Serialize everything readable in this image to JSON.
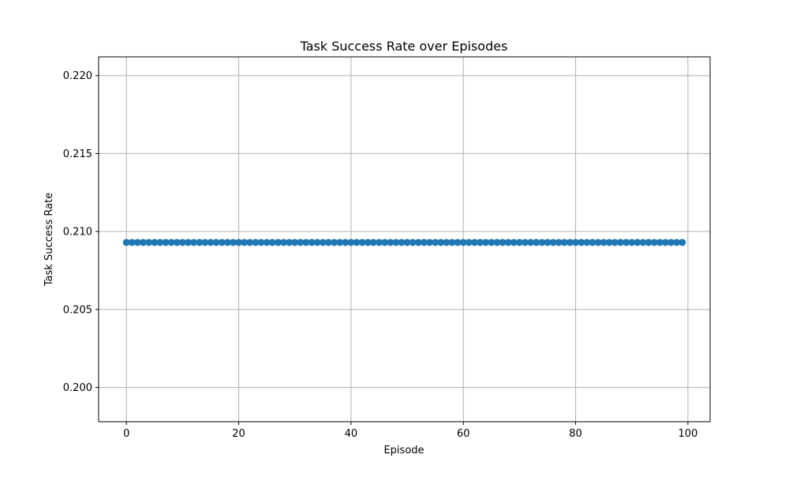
{
  "chart_data": {
    "type": "line",
    "title": "Task Success Rate over Episodes",
    "xlabel": "Episode",
    "ylabel": "Task Success Rate",
    "xlim": [
      -4.95,
      103.95
    ],
    "ylim": [
      0.1978,
      0.2212
    ],
    "xticks": [
      0,
      20,
      40,
      60,
      80,
      100
    ],
    "yticks": [
      0.2,
      0.205,
      0.21,
      0.215,
      0.22
    ],
    "ytick_labels": [
      "0.200",
      "0.205",
      "0.210",
      "0.215",
      "0.220"
    ],
    "grid": true,
    "line_color": "#1f77b4",
    "marker": "circle",
    "series": [
      {
        "x_start": 0,
        "x_end": 99,
        "x_step": 1,
        "value": 0.2093
      }
    ]
  }
}
